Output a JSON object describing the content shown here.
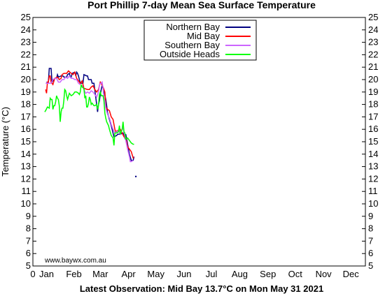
{
  "chart_data": {
    "type": "line",
    "title": "Port Phillip 7-day Mean Sea Surface Temperature",
    "footer": "Latest Observation: Mid Bay 13.7°C on Mon May 31 2021",
    "watermark": "www.baywx.com.au",
    "xlabel": "",
    "ylabel": "Temperature (°C)",
    "xlim": [
      0,
      365
    ],
    "ylim": [
      5,
      25
    ],
    "y_ticks": [
      5,
      6,
      7,
      8,
      9,
      10,
      11,
      12,
      13,
      14,
      15,
      16,
      17,
      18,
      19,
      20,
      21,
      22,
      23,
      24,
      25
    ],
    "x_tick_labels": [
      {
        "label": "0",
        "day": 0
      },
      {
        "label": "Jan",
        "day": 15
      },
      {
        "label": "Feb",
        "day": 45
      },
      {
        "label": "Mar",
        "day": 74
      },
      {
        "label": "Apr",
        "day": 105
      },
      {
        "label": "May",
        "day": 135
      },
      {
        "label": "Jun",
        "day": 166
      },
      {
        "label": "Jul",
        "day": 196
      },
      {
        "label": "Aug",
        "day": 227
      },
      {
        "label": "Sep",
        "day": 258
      },
      {
        "label": "Oct",
        "day": 288
      },
      {
        "label": "Nov",
        "day": 319
      },
      {
        "label": "Dec",
        "day": 349
      }
    ],
    "grid": false,
    "legend_position": "top-center",
    "series": [
      {
        "name": "Northern Bay",
        "color": "#000080",
        "points": [
          [
            15,
            19.8
          ],
          [
            17,
            19.8
          ],
          [
            18,
            20.9
          ],
          [
            20,
            20.9
          ],
          [
            21,
            19.8
          ],
          [
            24,
            20.1
          ],
          [
            26,
            20.1
          ],
          [
            27,
            20.4
          ],
          [
            28,
            20.2
          ],
          [
            31,
            20.3
          ],
          [
            33,
            20.3
          ],
          [
            34,
            20.2
          ],
          [
            37,
            20.2
          ],
          [
            38,
            20.4
          ],
          [
            40,
            20.5
          ],
          [
            41,
            20.2
          ],
          [
            42,
            20.2
          ],
          [
            43,
            20.5
          ],
          [
            46,
            20.6
          ],
          [
            47,
            20.3
          ],
          [
            48,
            20.6
          ],
          [
            49,
            20.5
          ],
          [
            50,
            20.3
          ],
          [
            52,
            19.7
          ],
          [
            55,
            19.7
          ],
          [
            56,
            20.4
          ],
          [
            59,
            20.3
          ],
          [
            60,
            20.3
          ],
          [
            61,
            20.0
          ],
          [
            64,
            20.0
          ],
          [
            65,
            19.7
          ],
          [
            67,
            19.7
          ],
          [
            70,
            18.0
          ],
          [
            71,
            17.4
          ],
          [
            72,
            18.0
          ],
          [
            73,
            18.3
          ],
          [
            74,
            18.8
          ],
          [
            75,
            19.2
          ],
          [
            76,
            19.5
          ],
          [
            78,
            19.1
          ],
          [
            80,
            18.4
          ],
          [
            81,
            17.9
          ],
          [
            82,
            17.3
          ],
          [
            84,
            16.8
          ],
          [
            86,
            16.3
          ],
          [
            89,
            15.4
          ],
          [
            92,
            15.5
          ],
          [
            93,
            15.6
          ],
          [
            96,
            15.6
          ],
          [
            99,
            15.7
          ],
          [
            100,
            15.5
          ],
          [
            101,
            15.3
          ],
          [
            102,
            15.6
          ],
          [
            104,
            14.8
          ],
          [
            106,
            14.0
          ],
          [
            108,
            13.5
          ],
          [
            110,
            13.5
          ],
          [
            111,
            13.8
          ]
        ]
      },
      {
        "name": "Mid Bay",
        "color": "#ff0000",
        "points": [
          [
            14,
            19.2
          ],
          [
            15,
            18.9
          ],
          [
            16,
            19.8
          ],
          [
            17,
            19.8
          ],
          [
            18,
            20.3
          ],
          [
            19,
            20.3
          ],
          [
            20,
            19.8
          ],
          [
            22,
            19.6
          ],
          [
            24,
            20.1
          ],
          [
            27,
            20.2
          ],
          [
            29,
            20.0
          ],
          [
            31,
            20.1
          ],
          [
            32,
            20.4
          ],
          [
            34,
            20.5
          ],
          [
            37,
            20.5
          ],
          [
            39,
            20.7
          ],
          [
            42,
            20.5
          ],
          [
            44,
            20.4
          ],
          [
            46,
            20.6
          ],
          [
            48,
            20.1
          ],
          [
            52,
            19.7
          ],
          [
            54,
            19.9
          ],
          [
            56,
            19.3
          ],
          [
            60,
            19.2
          ],
          [
            62,
            19.2
          ],
          [
            64,
            19.4
          ],
          [
            66,
            19.5
          ],
          [
            68,
            19.2
          ],
          [
            70,
            19.0
          ],
          [
            72,
            19.2
          ],
          [
            74,
            19.8
          ],
          [
            75,
            19.7
          ],
          [
            77,
            19.4
          ],
          [
            79,
            19.0
          ],
          [
            80,
            17.8
          ],
          [
            82,
            17.6
          ],
          [
            84,
            17.5
          ],
          [
            86,
            17.0
          ],
          [
            88,
            16.8
          ],
          [
            90,
            16.0
          ],
          [
            91,
            15.8
          ],
          [
            93,
            15.9
          ],
          [
            96,
            16.0
          ],
          [
            98,
            15.7
          ],
          [
            100,
            15.4
          ],
          [
            102,
            15.3
          ],
          [
            104,
            14.6
          ],
          [
            106,
            14.4
          ],
          [
            108,
            14.2
          ],
          [
            110,
            13.7
          ],
          [
            111,
            13.7
          ]
        ]
      },
      {
        "name": "Southern Bay",
        "color": "#cc66ff",
        "points": [
          [
            14,
            19.7
          ],
          [
            16,
            19.7
          ],
          [
            18,
            19.7
          ],
          [
            20,
            19.7
          ],
          [
            22,
            20.0
          ],
          [
            24,
            20.1
          ],
          [
            26,
            20.1
          ],
          [
            28,
            19.8
          ],
          [
            30,
            19.8
          ],
          [
            32,
            20.0
          ],
          [
            34,
            20.0
          ],
          [
            36,
            20.2
          ],
          [
            38,
            20.1
          ],
          [
            40,
            20.3
          ],
          [
            42,
            20.1
          ],
          [
            44,
            20.1
          ],
          [
            46,
            20.0
          ],
          [
            48,
            20.0
          ],
          [
            50,
            19.7
          ],
          [
            52,
            19.6
          ],
          [
            54,
            19.5
          ],
          [
            56,
            19.2
          ],
          [
            58,
            18.9
          ],
          [
            60,
            19.0
          ],
          [
            62,
            18.9
          ],
          [
            64,
            19.1
          ],
          [
            66,
            19.0
          ],
          [
            68,
            18.8
          ],
          [
            70,
            18.6
          ],
          [
            72,
            19.0
          ],
          [
            73,
            19.5
          ],
          [
            74,
            19.7
          ],
          [
            75,
            19.7
          ],
          [
            76,
            19.8
          ],
          [
            77,
            19.3
          ],
          [
            78,
            18.5
          ],
          [
            79,
            18.3
          ],
          [
            80,
            17.7
          ],
          [
            82,
            17.2
          ],
          [
            84,
            16.9
          ],
          [
            86,
            16.4
          ],
          [
            88,
            16.0
          ],
          [
            90,
            15.7
          ],
          [
            92,
            15.8
          ],
          [
            94,
            15.9
          ],
          [
            96,
            15.6
          ],
          [
            98,
            16.0
          ],
          [
            99,
            16.1
          ],
          [
            100,
            15.8
          ],
          [
            102,
            15.1
          ],
          [
            104,
            14.4
          ],
          [
            106,
            13.8
          ],
          [
            107,
            13.4
          ],
          [
            108,
            13.4
          ],
          [
            110,
            13.5
          ]
        ]
      },
      {
        "name": "Outside Heads",
        "color": "#00ff00",
        "points": [
          [
            13,
            17.4
          ],
          [
            14,
            17.5
          ],
          [
            16,
            17.8
          ],
          [
            18,
            17.7
          ],
          [
            19,
            18.5
          ],
          [
            20,
            18.4
          ],
          [
            21,
            18.4
          ],
          [
            22,
            17.6
          ],
          [
            23,
            17.9
          ],
          [
            24,
            17.9
          ],
          [
            25,
            18.2
          ],
          [
            26,
            18.7
          ],
          [
            27,
            18.5
          ],
          [
            28,
            18.4
          ],
          [
            29,
            17.9
          ],
          [
            30,
            16.6
          ],
          [
            31,
            17.4
          ],
          [
            32,
            17.7
          ],
          [
            33,
            17.7
          ],
          [
            34,
            18.3
          ],
          [
            35,
            19.2
          ],
          [
            36,
            19.1
          ],
          [
            37,
            18.7
          ],
          [
            38,
            18.4
          ],
          [
            40,
            18.9
          ],
          [
            42,
            18.7
          ],
          [
            44,
            18.8
          ],
          [
            46,
            19.0
          ],
          [
            48,
            19.0
          ],
          [
            50,
            18.9
          ],
          [
            51,
            18.8
          ],
          [
            52,
            19.0
          ],
          [
            53,
            19.6
          ],
          [
            54,
            19.4
          ],
          [
            56,
            19.3
          ],
          [
            57,
            18.5
          ],
          [
            58,
            18.7
          ],
          [
            59,
            17.8
          ],
          [
            60,
            17.8
          ],
          [
            61,
            18.1
          ],
          [
            62,
            18.6
          ],
          [
            63,
            18.4
          ],
          [
            64,
            18.0
          ],
          [
            65,
            18.1
          ],
          [
            67,
            17.9
          ],
          [
            68,
            17.9
          ],
          [
            70,
            18.0
          ],
          [
            71,
            17.6
          ],
          [
            72,
            17.9
          ],
          [
            73,
            18.8
          ],
          [
            74,
            19.0
          ],
          [
            75,
            18.7
          ],
          [
            77,
            18.7
          ],
          [
            78,
            18.3
          ],
          [
            79,
            17.3
          ],
          [
            80,
            16.9
          ],
          [
            81,
            16.6
          ],
          [
            83,
            16.3
          ],
          [
            84,
            16.0
          ],
          [
            86,
            15.5
          ],
          [
            88,
            15.3
          ],
          [
            89,
            14.7
          ],
          [
            90,
            15.7
          ],
          [
            92,
            15.7
          ],
          [
            94,
            15.8
          ],
          [
            95,
            16.3
          ],
          [
            96,
            15.6
          ],
          [
            98,
            16.0
          ],
          [
            99,
            16.6
          ],
          [
            100,
            15.8
          ],
          [
            101,
            15.7
          ],
          [
            102,
            15.2
          ],
          [
            104,
            15.3
          ],
          [
            106,
            15.1
          ],
          [
            107,
            15.0
          ],
          [
            108,
            14.9
          ],
          [
            110,
            14.8
          ],
          [
            111,
            14.8
          ]
        ]
      }
    ],
    "latest_point": {
      "series": "Northern Bay",
      "x": 113,
      "y": 12.2
    }
  }
}
